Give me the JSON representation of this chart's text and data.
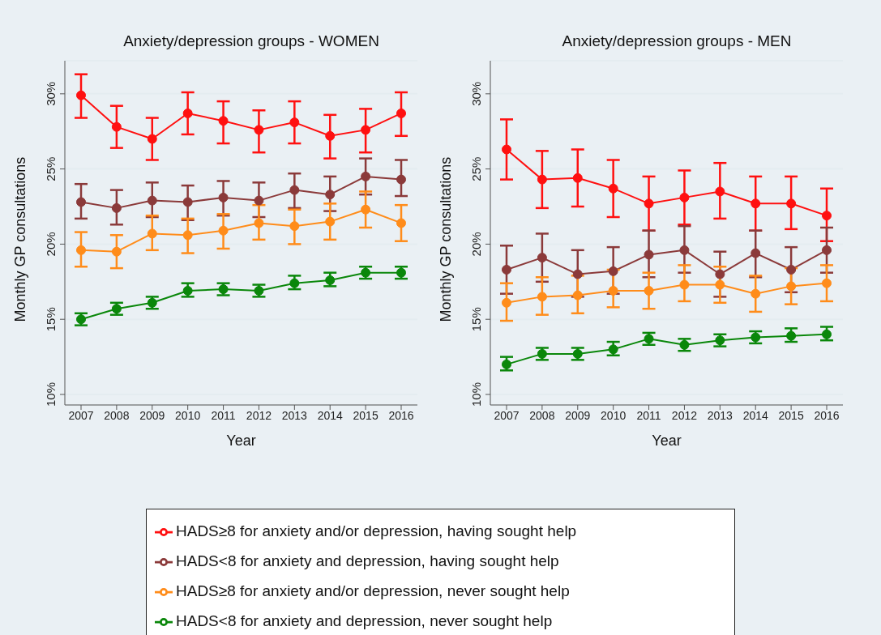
{
  "chart_data": [
    {
      "type": "line",
      "title": "Anxiety/depression groups - WOMEN",
      "xlabel": "Year",
      "ylabel": "Monthly GP consultations",
      "categories": [
        "2007",
        "2008",
        "2009",
        "2010",
        "2011",
        "2012",
        "2013",
        "2014",
        "2015",
        "2016"
      ],
      "ylim": [
        9.3,
        32.2
      ],
      "yticks": [
        {
          "value": 10,
          "label": "10%"
        },
        {
          "value": 15,
          "label": "15%"
        },
        {
          "value": 20,
          "label": "20%"
        },
        {
          "value": 25,
          "label": "25%"
        },
        {
          "value": 30,
          "label": "30%"
        }
      ],
      "grid": "y",
      "marker": "circle",
      "legend": "bottom",
      "series": [
        {
          "name": "HADS≥8 for anxiety and/or depression, having sought help",
          "color": "#ff1010",
          "values": [
            29.9,
            27.8,
            27.0,
            28.7,
            28.2,
            27.6,
            28.1,
            27.2,
            27.6,
            28.7
          ],
          "errors": [
            [
              28.4,
              31.3
            ],
            [
              26.4,
              29.2
            ],
            [
              25.6,
              28.4
            ],
            [
              27.3,
              30.1
            ],
            [
              26.7,
              29.5
            ],
            [
              26.1,
              28.9
            ],
            [
              26.7,
              29.5
            ],
            [
              25.7,
              28.6
            ],
            [
              26.1,
              29.0
            ],
            [
              27.2,
              30.1
            ]
          ]
        },
        {
          "name": "HADS<8 for anxiety and depression, having sought help",
          "color": "#8b3a3a",
          "values": [
            22.8,
            22.4,
            22.9,
            22.8,
            23.1,
            22.9,
            23.6,
            23.3,
            24.5,
            24.3
          ],
          "errors": [
            [
              21.7,
              24.0
            ],
            [
              21.3,
              23.6
            ],
            [
              21.8,
              24.1
            ],
            [
              21.6,
              23.9
            ],
            [
              21.9,
              24.2
            ],
            [
              21.8,
              24.1
            ],
            [
              22.4,
              24.7
            ],
            [
              22.2,
              24.5
            ],
            [
              23.3,
              25.7
            ],
            [
              23.2,
              25.6
            ]
          ]
        },
        {
          "name": "HADS≥8 for anxiety and/or depression, never sought help",
          "color": "#ff8c1a",
          "values": [
            19.6,
            19.5,
            20.7,
            20.6,
            20.9,
            21.4,
            21.2,
            21.5,
            22.3,
            21.4
          ],
          "errors": [
            [
              18.5,
              20.8
            ],
            [
              18.4,
              20.6
            ],
            [
              19.6,
              21.9
            ],
            [
              19.4,
              21.7
            ],
            [
              19.7,
              22.0
            ],
            [
              20.3,
              22.6
            ],
            [
              20.0,
              22.3
            ],
            [
              20.3,
              22.7
            ],
            [
              21.1,
              23.5
            ],
            [
              20.2,
              22.6
            ]
          ]
        },
        {
          "name": "HADS<8 for anxiety and depression, never sought help",
          "color": "#0a870a",
          "values": [
            15.0,
            15.7,
            16.1,
            16.9,
            17.0,
            16.9,
            17.4,
            17.6,
            18.1,
            18.1
          ],
          "errors": [
            [
              14.6,
              15.4
            ],
            [
              15.3,
              16.1
            ],
            [
              15.7,
              16.5
            ],
            [
              16.5,
              17.4
            ],
            [
              16.6,
              17.4
            ],
            [
              16.5,
              17.3
            ],
            [
              17.0,
              17.9
            ],
            [
              17.2,
              18.1
            ],
            [
              17.7,
              18.5
            ],
            [
              17.7,
              18.5
            ]
          ]
        }
      ]
    },
    {
      "type": "line",
      "title": "Anxiety/depression groups - MEN",
      "xlabel": "Year",
      "ylabel": "Monthly GP consultations",
      "categories": [
        "2007",
        "2008",
        "2009",
        "2010",
        "2011",
        "2012",
        "2013",
        "2014",
        "2015",
        "2016"
      ],
      "ylim": [
        9.3,
        32.2
      ],
      "yticks": [
        {
          "value": 10,
          "label": "10%"
        },
        {
          "value": 15,
          "label": "15%"
        },
        {
          "value": 20,
          "label": "20%"
        },
        {
          "value": 25,
          "label": "25%"
        },
        {
          "value": 30,
          "label": "30%"
        }
      ],
      "grid": "y",
      "marker": "circle",
      "series": [
        {
          "color": "#ff1010",
          "values": [
            26.3,
            24.3,
            24.4,
            23.7,
            22.7,
            23.1,
            23.5,
            22.7,
            22.7,
            21.9
          ],
          "errors": [
            [
              24.3,
              28.3
            ],
            [
              22.4,
              26.2
            ],
            [
              22.5,
              26.3
            ],
            [
              21.8,
              25.6
            ],
            [
              20.9,
              24.5
            ],
            [
              21.3,
              24.9
            ],
            [
              21.7,
              25.4
            ],
            [
              20.9,
              24.5
            ],
            [
              21.0,
              24.5
            ],
            [
              20.2,
              23.7
            ]
          ]
        },
        {
          "color": "#8b3a3a",
          "values": [
            18.3,
            19.1,
            18.0,
            18.2,
            19.3,
            19.6,
            18.0,
            19.4,
            18.3,
            19.6
          ],
          "errors": [
            [
              16.7,
              19.9
            ],
            [
              17.5,
              20.7
            ],
            [
              16.5,
              19.6
            ],
            [
              16.7,
              19.8
            ],
            [
              17.8,
              20.9
            ],
            [
              18.1,
              21.2
            ],
            [
              16.5,
              19.5
            ],
            [
              17.8,
              20.9
            ],
            [
              16.8,
              19.8
            ],
            [
              18.1,
              21.1
            ]
          ]
        },
        {
          "color": "#ff8c1a",
          "values": [
            16.1,
            16.5,
            16.6,
            16.9,
            16.9,
            17.3,
            17.3,
            16.7,
            17.2,
            17.4
          ],
          "errors": [
            [
              14.9,
              17.4
            ],
            [
              15.3,
              17.8
            ],
            [
              15.4,
              17.9
            ],
            [
              15.8,
              18.3
            ],
            [
              15.7,
              18.1
            ],
            [
              16.2,
              18.6
            ],
            [
              16.1,
              18.5
            ],
            [
              15.5,
              17.9
            ],
            [
              16.0,
              18.4
            ],
            [
              16.2,
              18.6
            ]
          ]
        },
        {
          "color": "#0a870a",
          "values": [
            12.0,
            12.7,
            12.7,
            13.0,
            13.7,
            13.3,
            13.6,
            13.8,
            13.9,
            14.0
          ],
          "errors": [
            [
              11.6,
              12.5
            ],
            [
              12.3,
              13.1
            ],
            [
              12.3,
              13.1
            ],
            [
              12.6,
              13.5
            ],
            [
              13.3,
              14.1
            ],
            [
              12.9,
              13.7
            ],
            [
              13.2,
              14.0
            ],
            [
              13.4,
              14.2
            ],
            [
              13.5,
              14.4
            ],
            [
              13.6,
              14.5
            ]
          ]
        }
      ]
    }
  ]
}
